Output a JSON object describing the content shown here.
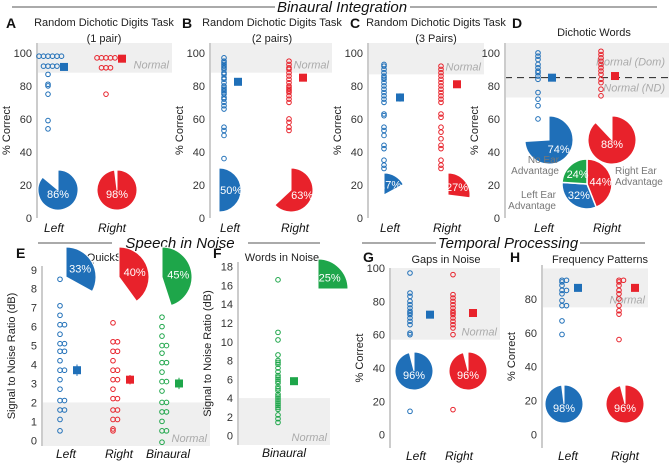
{
  "sections": {
    "binaural": "Binaural Integration",
    "speech": "Speech in Noise",
    "temporal": "Temporal Processing"
  },
  "colors": {
    "left": "#1f6fb8",
    "right": "#e8222b",
    "binaural": "#1ea64a",
    "band": "#efefef"
  },
  "chart_data": [
    {
      "id": "A",
      "type": "scatter",
      "title": "Random Dichotic Digits Task",
      "subtitle": "(1 pair)",
      "ylabel": "% Correct",
      "ylim": [
        0,
        106
      ],
      "yticks": [
        0,
        20,
        40,
        60,
        80,
        100
      ],
      "band": [
        88,
        106
      ],
      "band_label": "Normal",
      "categories": [
        "Left",
        "Right"
      ],
      "series": [
        {
          "name": "Left",
          "values": [
            98,
            98,
            98,
            98,
            98,
            98,
            92,
            92,
            92,
            92,
            87,
            81,
            80,
            75,
            59,
            54
          ],
          "mean": 91.5,
          "err": 0.8,
          "pie": 86
        },
        {
          "name": "Right",
          "values": [
            97,
            97,
            97,
            97,
            97,
            91,
            91,
            91,
            75
          ],
          "mean": 96.5,
          "err": 0.6,
          "pie": 98
        }
      ]
    },
    {
      "id": "B",
      "type": "scatter",
      "title": "Random Dichotic Digits Task",
      "subtitle": "(2 pairs)",
      "ylabel": "% Correct",
      "ylim": [
        0,
        106
      ],
      "yticks": [
        0,
        20,
        40,
        60,
        80,
        100
      ],
      "band": [
        88,
        106
      ],
      "band_label": "Normal",
      "categories": [
        "Left",
        "Right"
      ],
      "series": [
        {
          "name": "Left",
          "values": [
            97,
            95,
            94,
            93,
            92,
            91,
            90,
            88,
            87,
            85,
            84,
            82,
            80,
            79,
            78,
            77,
            76,
            75,
            73,
            72,
            70,
            68,
            66,
            55,
            53,
            50,
            36,
            27
          ],
          "mean": 82.5,
          "err": 1.5,
          "pie": 50
        },
        {
          "name": "Right",
          "values": [
            95,
            93,
            91,
            90,
            88,
            86,
            84,
            82,
            80,
            79,
            78,
            77,
            76,
            74,
            72,
            70,
            60,
            58,
            55,
            53
          ],
          "mean": 85,
          "err": 1,
          "pie": 63
        }
      ]
    },
    {
      "id": "C",
      "type": "scatter",
      "title": "Random Dichotic Digits Task",
      "subtitle": "(3 Pairs)",
      "ylabel": "% Correct",
      "ylim": [
        0,
        106
      ],
      "yticks": [
        0,
        20,
        40,
        60,
        80,
        100
      ],
      "band": [
        87,
        106
      ],
      "band_label": "Normal",
      "categories": [
        "Left",
        "Right"
      ],
      "series": [
        {
          "name": "Left",
          "values": [
            93,
            92,
            90,
            88,
            86,
            85,
            84,
            82,
            80,
            78,
            76,
            74,
            72,
            70,
            63,
            62,
            55,
            53,
            50,
            44,
            42,
            35,
            32,
            30
          ],
          "mean": 73,
          "err": 2.5,
          "pie": 17
        },
        {
          "name": "Right",
          "values": [
            92,
            90,
            88,
            86,
            84,
            82,
            80,
            78,
            76,
            74,
            72,
            70,
            63,
            61,
            55,
            52,
            48,
            44,
            42,
            35,
            32,
            30
          ],
          "mean": 81,
          "err": 2,
          "pie": 27
        }
      ]
    },
    {
      "id": "D",
      "type": "scatter",
      "title": "Dichotic Words",
      "subtitle": "",
      "ylabel": "% Correct",
      "ylim": [
        0,
        106
      ],
      "yticks": [
        0,
        20,
        40,
        60,
        80,
        100
      ],
      "band": [
        73,
        106
      ],
      "band_label": "Normal (Dom)",
      "band_label2": "Normal (ND)",
      "dashed": 85,
      "categories": [
        "Left",
        "Right"
      ],
      "series": [
        {
          "name": "Left",
          "values": [
            100,
            98,
            96,
            93,
            91,
            89,
            88,
            86,
            84,
            76,
            72,
            68,
            60
          ],
          "mean": 85,
          "err": 1.2,
          "pie": 74
        },
        {
          "name": "Right",
          "values": [
            101,
            99,
            97,
            95,
            93,
            91,
            89,
            87,
            84,
            82,
            78,
            74
          ],
          "mean": 86,
          "err": 1.2,
          "pie": 88
        }
      ],
      "advantage_pie": [
        {
          "label": "Right Ear Advantage",
          "value": 44
        },
        {
          "label": "Left Ear Advantage",
          "value": 32
        },
        {
          "label": "No Ear Advantage",
          "value": 24
        }
      ]
    },
    {
      "id": "E",
      "type": "scatter",
      "title": "QuickSIN",
      "subtitle": "",
      "ylabel": "Signal to Noise Ratio (dB)",
      "ylim": [
        -0.3,
        9.2
      ],
      "yticks": [
        0,
        1,
        2,
        3,
        4,
        5,
        6,
        7,
        8,
        9
      ],
      "band": [
        -0.3,
        2
      ],
      "band_label": "Normal",
      "categories": [
        "Left",
        "Right",
        "Binaural"
      ],
      "series": [
        {
          "name": "Left",
          "values": [
            8.5,
            7.1,
            6.6,
            6.1,
            6.1,
            5.6,
            5.1,
            5.1,
            4.7,
            4.7,
            4.2,
            3.7,
            3.7,
            3.2,
            2.7,
            2.1,
            2.1,
            1.6,
            1.6,
            1.1,
            0.5
          ],
          "mean": 3.7,
          "err": 0.3,
          "pie": 33
        },
        {
          "name": "Right",
          "values": [
            6.2,
            5.2,
            5.2,
            4.7,
            4.7,
            4.2,
            3.7,
            3.7,
            3.2,
            3.2,
            2.7,
            2.2,
            2.2,
            1.6,
            1.6,
            1.1,
            1.1,
            0.6,
            0.5
          ],
          "mean": 3.2,
          "err": 0.25,
          "pie": 40
        },
        {
          "name": "Binaural",
          "values": [
            6.5,
            6.0,
            5.5,
            5.0,
            5.0,
            4.6,
            4.1,
            4.1,
            3.6,
            3.1,
            3.1,
            2.6,
            2.0,
            2.0,
            1.5,
            1.5,
            1.0,
            0.5,
            0.5,
            -0.1
          ],
          "mean": 3.0,
          "err": 0.3,
          "pie": 45
        }
      ]
    },
    {
      "id": "F",
      "type": "scatter",
      "title": "Words in Noise",
      "subtitle": "",
      "ylabel": "Signal to Noise Ratio (dB)",
      "ylim": [
        -1,
        18.5
      ],
      "yticks": [
        0,
        2,
        4,
        6,
        8,
        10,
        12,
        14,
        16,
        18
      ],
      "band": [
        -1,
        4
      ],
      "band_label": "Normal",
      "categories": [
        "Binaural"
      ],
      "series": [
        {
          "name": "Binaural",
          "values": [
            16.6,
            11,
            10.2,
            8.6,
            8,
            7.8,
            7.6,
            7.2,
            6.8,
            6.4,
            6.2,
            6,
            5.8,
            5.6,
            5.2,
            5,
            4.8,
            4.4,
            4.2,
            4,
            3.8,
            3.6,
            3.4,
            3.2,
            3,
            2.8,
            2.2,
            1.8,
            1.4
          ],
          "mean": 5.8,
          "err": 0.3,
          "pie": 25
        }
      ]
    },
    {
      "id": "G",
      "type": "scatter",
      "title": "Gaps in Noise",
      "subtitle": "",
      "ylabel": "% Correct",
      "ylim": [
        -8,
        100
      ],
      "yticks": [
        0,
        20,
        40,
        60,
        80,
        100
      ],
      "band": [
        57,
        100
      ],
      "band_label": "Normal",
      "categories": [
        "Left",
        "Right"
      ],
      "series": [
        {
          "name": "Left",
          "values": [
            97,
            85,
            83,
            80,
            78,
            76,
            74,
            73,
            72,
            70,
            68,
            66,
            61,
            60,
            14
          ],
          "mean": 72,
          "err": 2,
          "pie": 96
        },
        {
          "name": "Right",
          "values": [
            96,
            84,
            82,
            80,
            78,
            76,
            74,
            73,
            72,
            70,
            68,
            66,
            64,
            60,
            15
          ],
          "mean": 73,
          "err": 2,
          "pie": 96
        }
      ]
    },
    {
      "id": "H",
      "type": "scatter",
      "title": "Frequency Patterns",
      "subtitle": "",
      "ylabel": "% Correct",
      "ylim": [
        -8,
        100
      ],
      "yticks": [
        0,
        20,
        40,
        60,
        80
      ],
      "band": [
        75,
        98
      ],
      "band_label": "Normal",
      "categories": [
        "Left",
        "Right"
      ],
      "series": [
        {
          "name": "Left",
          "values": [
            91,
            91,
            90,
            88,
            85,
            85,
            83,
            79,
            76,
            76,
            67,
            59
          ],
          "mean": 86.5,
          "err": 1,
          "pie": 98
        },
        {
          "name": "Right",
          "values": [
            91,
            91,
            90,
            88,
            85,
            83,
            80,
            76,
            73,
            71,
            56
          ],
          "mean": 86.5,
          "err": 1,
          "pie": 96
        }
      ]
    }
  ]
}
